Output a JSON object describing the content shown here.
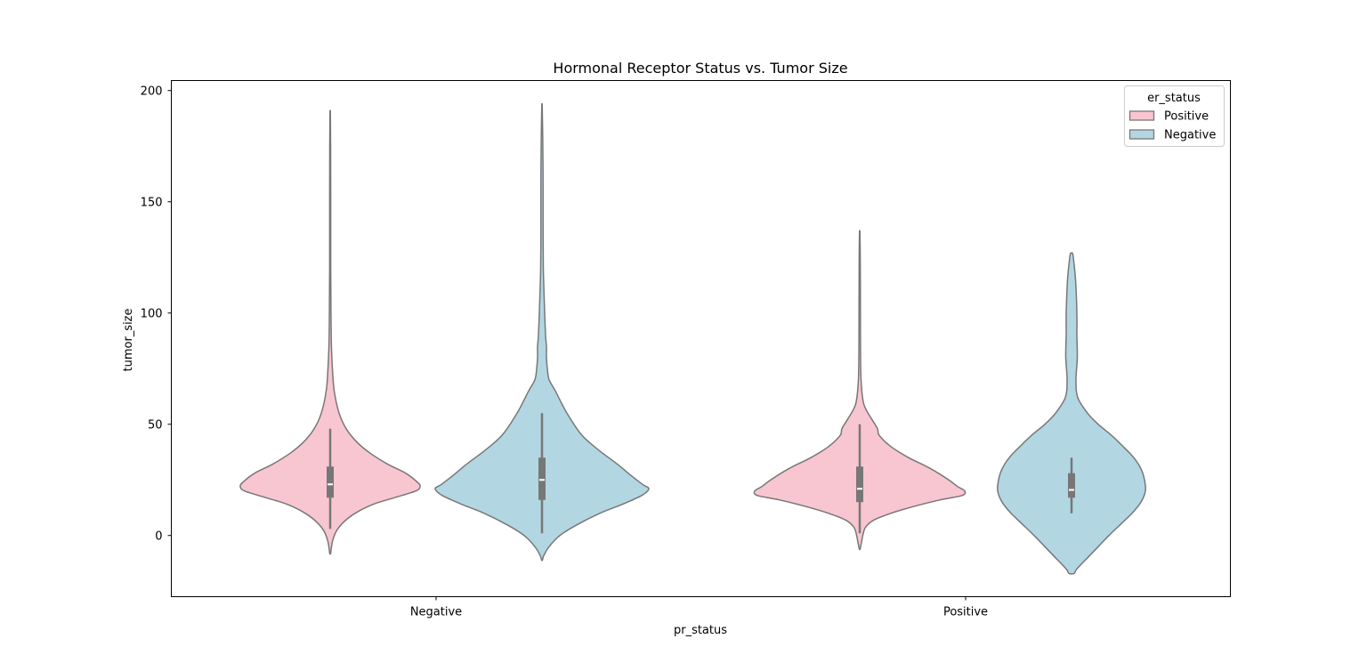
{
  "chart_data": {
    "type": "violin",
    "title": "Hormonal Receptor Status vs. Tumor Size",
    "xlabel": "pr_status",
    "ylabel": "tumor_size",
    "categories": [
      "Negative",
      "Positive"
    ],
    "ylim": [
      -27.5,
      204.5
    ],
    "yticks": [
      0,
      50,
      100,
      150,
      200
    ],
    "grid": false,
    "legend": {
      "title": "er_status",
      "position": "top-right",
      "entries": [
        "Positive",
        "Negative"
      ]
    },
    "colors": {
      "Positive": "#f8c6d0",
      "Negative": "#b2d7e2",
      "outline": "#777777",
      "box": "#777777"
    },
    "series": [
      {
        "name": "Positive",
        "violins": [
          {
            "category": "Negative",
            "density_y": [
              191,
              175,
              150,
              120,
              100,
              85,
              75,
              65,
              55,
              48,
              42,
              37,
              32,
              28,
              24,
              22,
              20,
              17,
              14,
              10,
              6,
              2,
              -2,
              -5,
              -8
            ],
            "half_width": [
              0.2,
              0.5,
              0.6,
              0.6,
              0.9,
              1.4,
              2.5,
              4.5,
              10,
              18,
              30,
              45,
              65,
              85,
              98,
              101,
              96,
              72,
              48,
              28,
              15,
              7,
              3,
              1.5,
              0.5
            ],
            "whisker": [
              3,
              48
            ],
            "q1": 17,
            "median": 23,
            "q3": 31
          },
          {
            "category": "Positive",
            "density_y": [
              137,
              125,
              100,
              85,
              70,
              60,
              56,
              52,
              48,
              45,
              40,
              35,
              30,
              25,
              22,
              20,
              18,
              16,
              13,
              10,
              7,
              4,
              1,
              -3,
              -6
            ],
            "half_width": [
              0.2,
              0.6,
              0.8,
              0.9,
              1.5,
              4,
              8,
              14,
              20,
              22,
              35,
              55,
              80,
              100,
              110,
              118,
              115,
              90,
              60,
              35,
              16,
              7,
              4,
              2,
              0.5
            ],
            "whisker": [
              1,
              50
            ],
            "q1": 15,
            "median": 21,
            "q3": 31
          }
        ]
      },
      {
        "name": "Negative",
        "violins": [
          {
            "category": "Negative",
            "density_y": [
              194,
              180,
              160,
              140,
              120,
              110,
              100,
              90,
              85,
              80,
              75,
              70,
              65,
              55,
              45,
              38,
              32,
              27,
              23,
              21,
              18,
              14,
              10,
              5,
              0,
              -5,
              -9,
              -11
            ],
            "half_width": [
              0.2,
              0.8,
              1.2,
              1.2,
              1.5,
              2.2,
              3,
              4,
              5,
              5,
              6,
              8,
              15,
              28,
              45,
              65,
              85,
              100,
              113,
              120,
              112,
              90,
              65,
              40,
              20,
              8,
              2,
              0.5
            ],
            "whisker": [
              1,
              55
            ],
            "q1": 16,
            "median": 25,
            "q3": 35
          },
          {
            "category": "Positive",
            "density_y": [
              127,
              125,
              115,
              100,
              90,
              80,
              70,
              62,
              55,
              50,
              45,
              40,
              35,
              30,
              25,
              20,
              15,
              10,
              5,
              0,
              -5,
              -10,
              -15,
              -17
            ],
            "half_width": [
              1,
              2,
              4.5,
              6,
              6,
              6.5,
              5,
              7,
              18,
              30,
              45,
              58,
              70,
              78,
              82,
              83,
              78,
              68,
              55,
              42,
              30,
              18,
              6,
              3
            ],
            "whisker": [
              10,
              35
            ],
            "q1": 17,
            "median": 20.5,
            "q3": 28
          }
        ]
      }
    ]
  }
}
